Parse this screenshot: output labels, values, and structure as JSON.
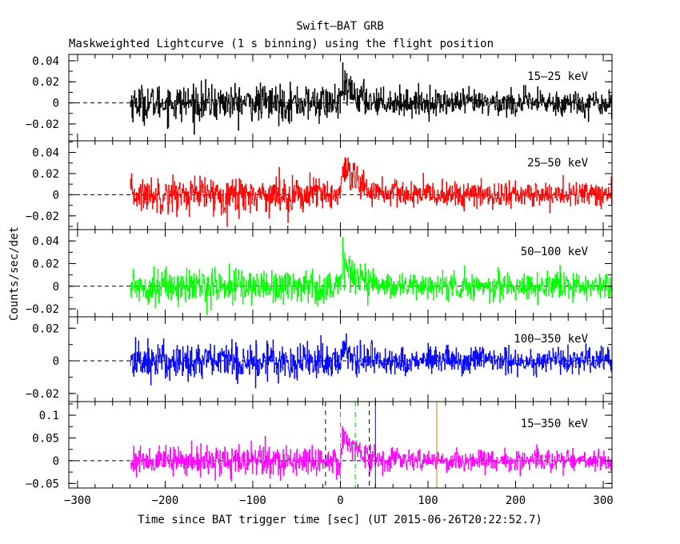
{
  "chart_data": {
    "type": "line",
    "title": "Swift—BAT GRB",
    "subtitle": "Maskweighted Lightcurve (1 s binning) using the flight position",
    "xlabel": "Time since BAT trigger time [sec] (UT 2015-06-26T20:22:52.7)",
    "ylabel": "Counts/sec/det",
    "xlim": [
      -310,
      310
    ],
    "xticks": [
      -300,
      -200,
      -100,
      0,
      100,
      200,
      300
    ],
    "data_range": [
      -240,
      310
    ],
    "grid": false,
    "panels": [
      {
        "name": "15—25 keV",
        "color": "#000000",
        "ylim": [
          -0.036,
          0.046
        ],
        "yticks": [
          -0.02,
          0,
          0.02,
          0.04
        ],
        "ytick_labels": [
          "−0.02",
          "0",
          "0.02",
          "0.04"
        ],
        "noise": 0.0085,
        "pulse": {
          "t0": 0,
          "rise": 1.5,
          "decay": 18,
          "amp": 0.018
        },
        "lines": []
      },
      {
        "name": "25—50 keV",
        "color": "#ff0000",
        "ylim": [
          -0.033,
          0.051
        ],
        "yticks": [
          -0.02,
          0,
          0.02,
          0.04
        ],
        "ytick_labels": [
          "−0.02",
          "0",
          "0.02",
          "0.04"
        ],
        "noise": 0.0085,
        "pulse": {
          "t0": 0,
          "rise": 2,
          "decay": 20,
          "amp": 0.027
        },
        "lines": []
      },
      {
        "name": "50—100 keV",
        "color": "#00ff00",
        "ylim": [
          -0.027,
          0.05
        ],
        "yticks": [
          -0.02,
          0,
          0.02,
          0.04
        ],
        "ytick_labels": [
          "−0.02",
          "0",
          "0.02",
          "0.04"
        ],
        "noise": 0.0078,
        "pulse": {
          "t0": 0,
          "rise": 2,
          "decay": 17,
          "amp": 0.026
        },
        "lines": []
      },
      {
        "name": "100—350 keV",
        "color": "#0000ff",
        "ylim": [
          -0.025,
          0.027
        ],
        "yticks": [
          -0.02,
          0,
          0.02
        ],
        "ytick_labels": [
          "−0.02",
          "0",
          "0.02"
        ],
        "noise": 0.0058,
        "pulse": {
          "t0": 0,
          "rise": 2,
          "decay": 10,
          "amp": 0.01
        },
        "lines": []
      },
      {
        "name": "15—350 keV",
        "color": "#ff00ff",
        "ylim": [
          -0.06,
          0.13
        ],
        "yticks": [
          -0.05,
          0,
          0.05,
          0.1
        ],
        "ytick_labels": [
          "−0.05",
          "0",
          "0.05",
          "0.1"
        ],
        "noise": 0.016,
        "pulse": {
          "t0": 0,
          "rise": 2,
          "decay": 15,
          "amp": 0.08
        },
        "lines": [
          {
            "x": -17,
            "color": "#000000",
            "style": "dashed"
          },
          {
            "x": 0,
            "color": "#00c000",
            "style": "dashdot"
          },
          {
            "x": 17,
            "color": "#00c000",
            "style": "dashdot"
          },
          {
            "x": 33,
            "color": "#000000",
            "style": "dashed"
          },
          {
            "x": 40,
            "color": "#0000ff",
            "style": "solid"
          },
          {
            "x": 110,
            "color": "#d08000",
            "style": "solid"
          }
        ]
      }
    ]
  }
}
